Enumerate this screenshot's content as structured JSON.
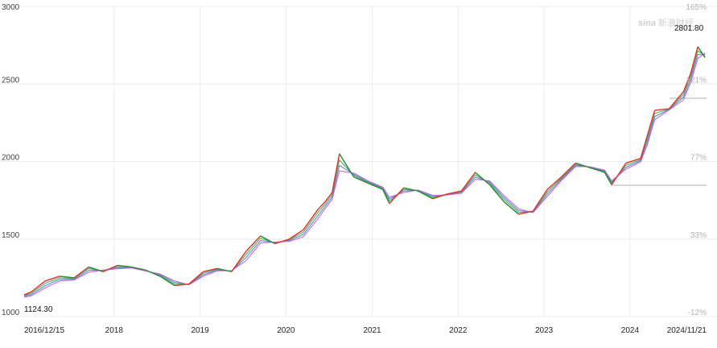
{
  "watermark": {
    "brand": "sina",
    "name": "新浪财经"
  },
  "chart_data": {
    "type": "line",
    "subtype": "candlestick with moving averages",
    "title": "",
    "xlabel": "",
    "ylabel": "",
    "ylim": [
      1000,
      3000
    ],
    "y_ticks": [
      "3000",
      "2500",
      "2000",
      "1500",
      "1000"
    ],
    "y2_ticks": [
      "165%",
      "121%",
      "77%",
      "33%",
      "-12%"
    ],
    "x_ticks": [
      "2016/12/15",
      "2018",
      "2019",
      "2020",
      "2021",
      "2022",
      "2023",
      "2024",
      "2024/11/21"
    ],
    "grid": true,
    "annotations": {
      "low": "1124.30",
      "high": "2801.80"
    },
    "x": [
      "2016-12",
      "2017-01",
      "2017-03",
      "2017-05",
      "2017-07",
      "2017-09",
      "2017-11",
      "2018-01",
      "2018-03",
      "2018-05",
      "2018-07",
      "2018-09",
      "2018-11",
      "2019-01",
      "2019-03",
      "2019-05",
      "2019-07",
      "2019-09",
      "2019-11",
      "2020-01",
      "2020-03",
      "2020-05",
      "2020-06",
      "2020-07",
      "2020-08",
      "2020-10",
      "2020-12",
      "2021-02",
      "2021-03",
      "2021-05",
      "2021-07",
      "2021-09",
      "2021-11",
      "2022-01",
      "2022-03",
      "2022-05",
      "2022-07",
      "2022-09",
      "2022-11",
      "2023-01",
      "2023-03",
      "2023-05",
      "2023-07",
      "2023-09",
      "2023-10",
      "2023-12",
      "2024-02",
      "2024-03",
      "2024-04",
      "2024-06",
      "2024-08",
      "2024-09",
      "2024-10",
      "2024-11"
    ],
    "series": [
      {
        "values": [
          1140,
          1160,
          1230,
          1260,
          1250,
          1320,
          1290,
          1330,
          1320,
          1300,
          1260,
          1200,
          1210,
          1290,
          1310,
          1290,
          1420,
          1520,
          1470,
          1500,
          1560,
          1690,
          1740,
          1800,
          2050,
          1900,
          1860,
          1820,
          1730,
          1830,
          1810,
          1760,
          1790,
          1810,
          1930,
          1850,
          1740,
          1660,
          1680,
          1820,
          1900,
          1990,
          1960,
          1930,
          1850,
          1990,
          2020,
          2170,
          2330,
          2340,
          2450,
          2570,
          2740,
          2670
        ]
      },
      {
        "values": [
          1135,
          1150,
          1215,
          1250,
          1245,
          1310,
          1295,
          1322,
          1318,
          1298,
          1265,
          1210,
          1208,
          1280,
          1305,
          1292,
          1400,
          1505,
          1475,
          1495,
          1545,
          1670,
          1725,
          1785,
          2010,
          1910,
          1865,
          1825,
          1745,
          1820,
          1812,
          1768,
          1788,
          1805,
          1915,
          1860,
          1755,
          1672,
          1675,
          1805,
          1892,
          1982,
          1962,
          1935,
          1860,
          1975,
          2012,
          2150,
          2310,
          2338,
          2432,
          2550,
          2715,
          2680
        ]
      },
      {
        "values": [
          1130,
          1142,
          1200,
          1240,
          1240,
          1298,
          1298,
          1315,
          1316,
          1296,
          1270,
          1220,
          1206,
          1270,
          1300,
          1294,
          1380,
          1490,
          1478,
          1490,
          1530,
          1650,
          1710,
          1770,
          1975,
          1918,
          1870,
          1830,
          1758,
          1810,
          1814,
          1775,
          1786,
          1800,
          1900,
          1868,
          1768,
          1684,
          1672,
          1790,
          1884,
          1975,
          1964,
          1940,
          1868,
          1962,
          2005,
          2130,
          2290,
          2335,
          2415,
          2530,
          2690,
          2690
        ]
      },
      {
        "values": [
          1125,
          1134,
          1185,
          1230,
          1236,
          1285,
          1300,
          1308,
          1314,
          1294,
          1275,
          1230,
          1205,
          1260,
          1295,
          1296,
          1360,
          1475,
          1480,
          1485,
          1515,
          1630,
          1695,
          1755,
          1940,
          1925,
          1875,
          1835,
          1770,
          1800,
          1816,
          1782,
          1784,
          1795,
          1885,
          1875,
          1780,
          1696,
          1670,
          1775,
          1876,
          1968,
          1966,
          1945,
          1876,
          1950,
          1998,
          2110,
          2270,
          2332,
          2398,
          2510,
          2665,
          2700
        ]
      }
    ],
    "colors": {
      "price": "#e0342a",
      "price_alt": "#2a8a3a",
      "ma": [
        "#e08a2a",
        "#3aa84a",
        "#4a7ad8",
        "#c85ac8"
      ],
      "grid": "#ececec"
    }
  }
}
